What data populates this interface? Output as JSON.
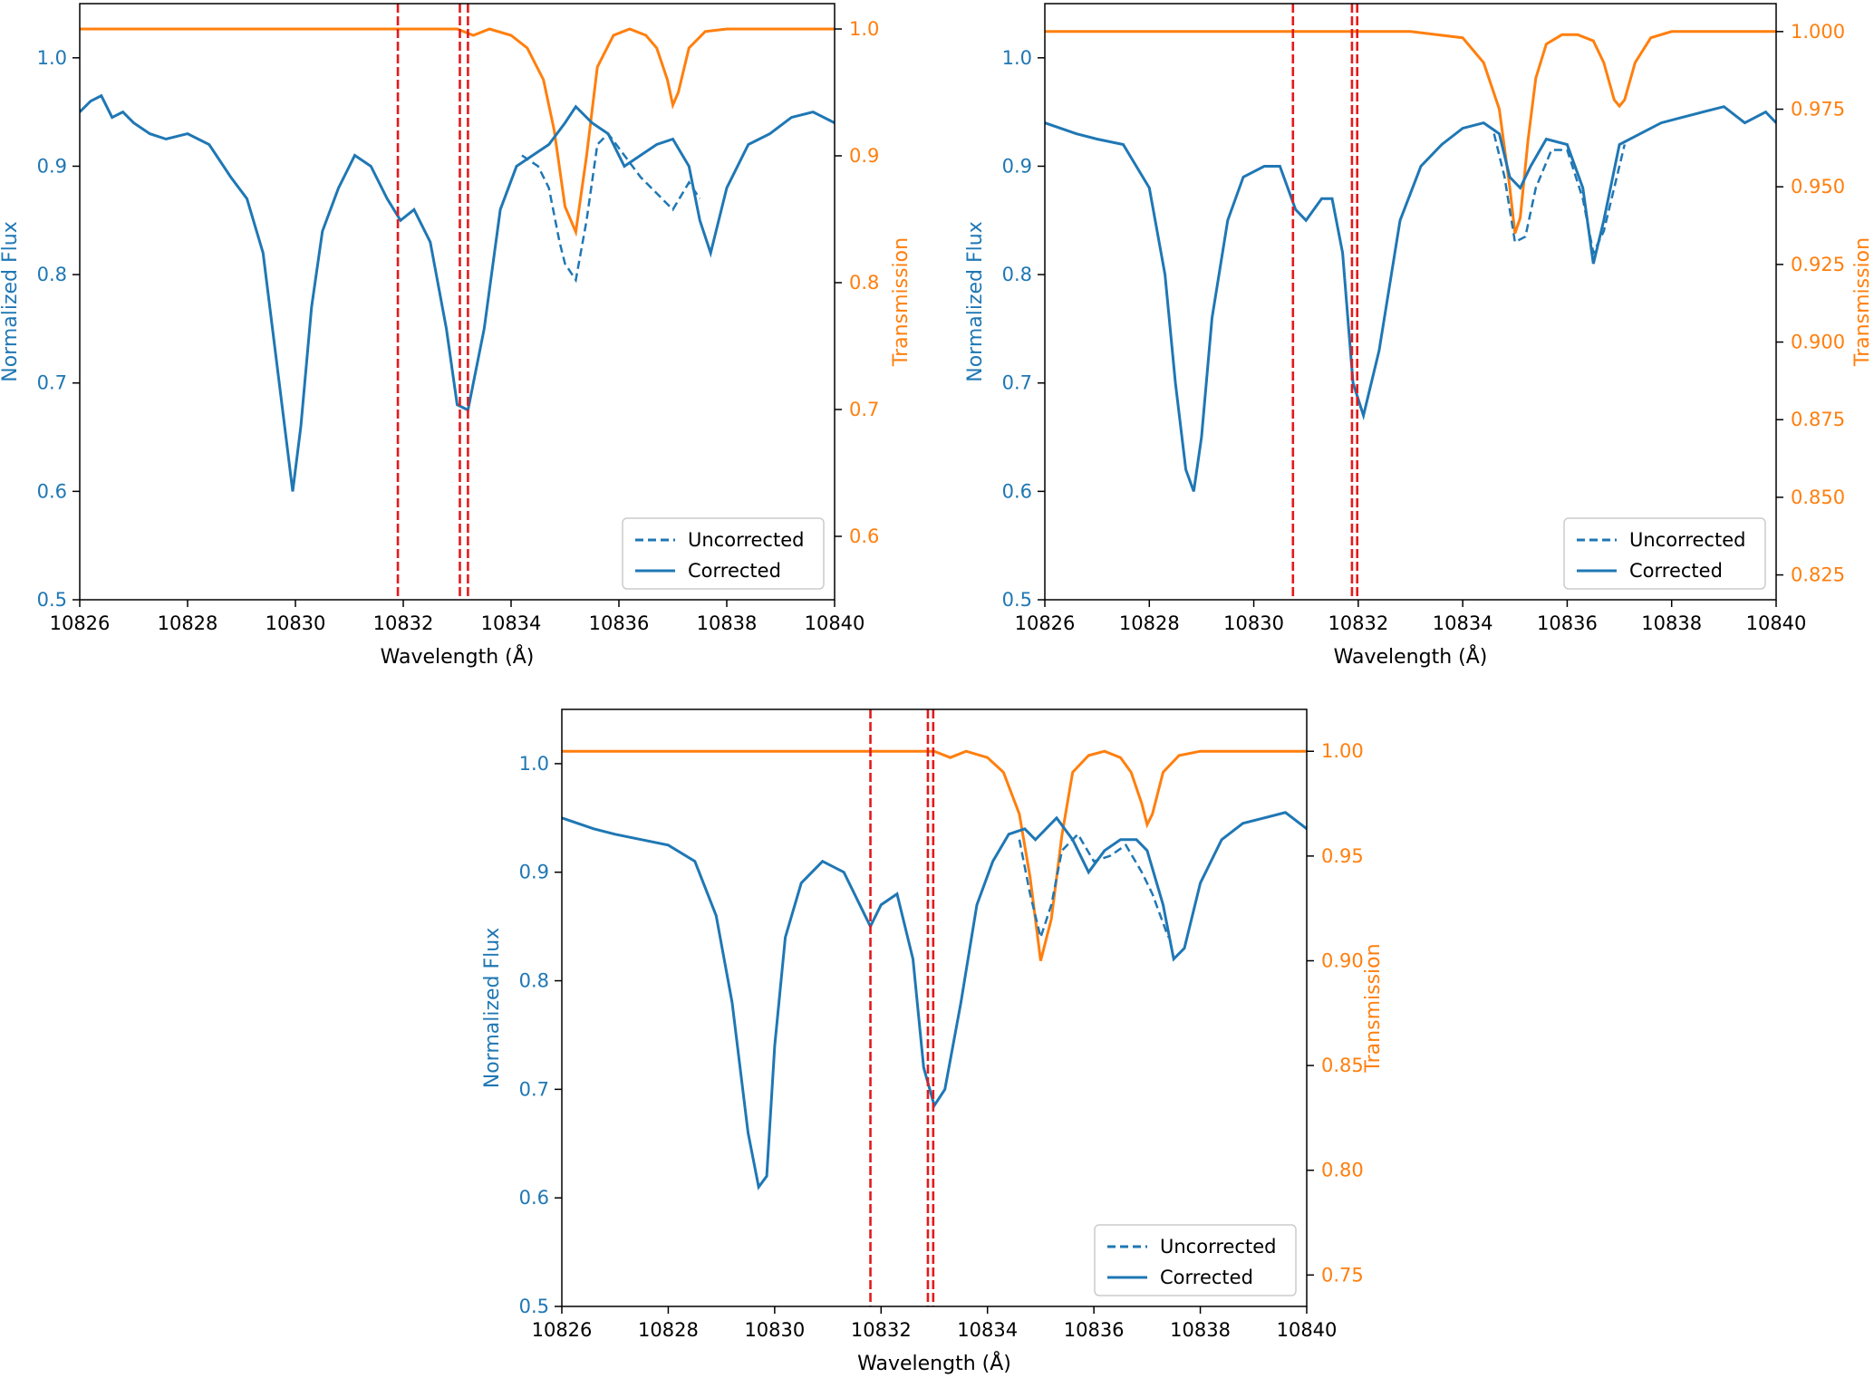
{
  "figure": {
    "panels": 3
  },
  "style": {
    "flux_color": "#1f77b4",
    "transmission_color": "#ff7f0e",
    "marker_color": "#e31a1c",
    "axis_color": "#000000"
  },
  "chart_data": [
    {
      "type": "line",
      "panel": "top-left",
      "xlabel": "Wavelength (Å)",
      "ylabel_left": "Normalized Flux",
      "ylabel_right": "Transmission",
      "xlim": [
        10826,
        10840
      ],
      "ylim_left": [
        0.5,
        1.05
      ],
      "ylim_right": [
        0.55,
        1.02
      ],
      "xticks": [
        10826,
        10828,
        10830,
        10832,
        10834,
        10836,
        10838,
        10840
      ],
      "yticks_left": [
        0.5,
        0.6,
        0.7,
        0.8,
        0.9,
        1.0
      ],
      "yticks_left_labels": [
        "0.5",
        "0.6",
        "0.7",
        "0.8",
        "0.9",
        "1.0"
      ],
      "yticks_right": [
        0.6,
        0.7,
        0.8,
        0.9,
        1.0
      ],
      "yticks_right_labels": [
        "0.6",
        "0.7",
        "0.8",
        "0.9",
        "1.0"
      ],
      "legend": {
        "position": "lower-right",
        "entries": [
          "Uncorrected",
          "Corrected"
        ]
      },
      "vlines": [
        10831.9,
        10833.05,
        10833.2
      ],
      "corrected": {
        "x": [
          10826,
          10826.2,
          10826.4,
          10826.6,
          10826.8,
          10827,
          10827.3,
          10827.6,
          10828,
          10828.4,
          10828.8,
          10829.1,
          10829.4,
          10829.6,
          10829.8,
          10829.95,
          10830.1,
          10830.3,
          10830.5,
          10830.8,
          10831.1,
          10831.4,
          10831.7,
          10831.95,
          10832.2,
          10832.5,
          10832.8,
          10833.0,
          10833.2,
          10833.5,
          10833.8,
          10834.1,
          10834.4,
          10834.7,
          10835.0,
          10835.2,
          10835.5,
          10835.8,
          10836.1,
          10836.4,
          10836.7,
          10837.0,
          10837.3,
          10837.5,
          10837.7,
          10838.0,
          10838.4,
          10838.8,
          10839.2,
          10839.6,
          10840
        ],
        "y": [
          0.95,
          0.96,
          0.965,
          0.945,
          0.95,
          0.94,
          0.93,
          0.925,
          0.93,
          0.92,
          0.89,
          0.87,
          0.82,
          0.74,
          0.66,
          0.6,
          0.66,
          0.77,
          0.84,
          0.88,
          0.91,
          0.9,
          0.87,
          0.85,
          0.86,
          0.83,
          0.75,
          0.68,
          0.675,
          0.75,
          0.86,
          0.9,
          0.91,
          0.92,
          0.94,
          0.955,
          0.94,
          0.93,
          0.9,
          0.91,
          0.92,
          0.925,
          0.9,
          0.85,
          0.82,
          0.88,
          0.92,
          0.93,
          0.945,
          0.95,
          0.94
        ]
      },
      "uncorrected": {
        "x": [
          10834.2,
          10834.5,
          10834.7,
          10834.9,
          10835.0,
          10835.2,
          10835.4,
          10835.6,
          10835.8,
          10836.1,
          10836.4,
          10836.7,
          10837.0,
          10837.3,
          10837.5
        ],
        "y": [
          0.91,
          0.9,
          0.88,
          0.83,
          0.81,
          0.795,
          0.85,
          0.92,
          0.93,
          0.91,
          0.89,
          0.875,
          0.86,
          0.885,
          0.87
        ]
      },
      "transmission": {
        "x": [
          10826,
          10827,
          10828,
          10829,
          10830,
          10831,
          10832,
          10833,
          10833.3,
          10833.6,
          10834,
          10834.3,
          10834.6,
          10834.8,
          10835.0,
          10835.2,
          10835.4,
          10835.6,
          10835.9,
          10836.2,
          10836.5,
          10836.7,
          10836.9,
          10837.0,
          10837.1,
          10837.3,
          10837.6,
          10838,
          10839,
          10840
        ],
        "y": [
          1.0,
          1.0,
          1.0,
          1.0,
          1.0,
          1.0,
          1.0,
          1.0,
          0.995,
          1.0,
          0.995,
          0.985,
          0.96,
          0.92,
          0.86,
          0.84,
          0.9,
          0.97,
          0.995,
          1.0,
          0.995,
          0.985,
          0.96,
          0.94,
          0.95,
          0.985,
          0.998,
          1.0,
          1.0,
          1.0
        ]
      }
    },
    {
      "type": "line",
      "panel": "top-right",
      "xlabel": "Wavelength (Å)",
      "ylabel_left": "Normalized Flux",
      "ylabel_right": "Transmission",
      "xlim": [
        10826,
        10840
      ],
      "ylim_left": [
        0.5,
        1.05
      ],
      "ylim_right": [
        0.817,
        1.009
      ],
      "xticks": [
        10826,
        10828,
        10830,
        10832,
        10834,
        10836,
        10838,
        10840
      ],
      "yticks_left": [
        0.5,
        0.6,
        0.7,
        0.8,
        0.9,
        1.0
      ],
      "yticks_left_labels": [
        "0.5",
        "0.6",
        "0.7",
        "0.8",
        "0.9",
        "1.0"
      ],
      "yticks_right": [
        0.825,
        0.85,
        0.875,
        0.9,
        0.925,
        0.95,
        0.975,
        1.0
      ],
      "yticks_right_labels": [
        "0.825",
        "0.850",
        "0.875",
        "0.900",
        "0.925",
        "0.950",
        "0.975",
        "1.000"
      ],
      "legend": {
        "position": "lower-right",
        "entries": [
          "Uncorrected",
          "Corrected"
        ]
      },
      "vlines": [
        10830.75,
        10831.88,
        10831.98
      ],
      "corrected": {
        "x": [
          10826,
          10826.3,
          10826.6,
          10827,
          10827.5,
          10828,
          10828.3,
          10828.5,
          10828.7,
          10828.85,
          10829.0,
          10829.2,
          10829.5,
          10829.8,
          10830.2,
          10830.5,
          10830.8,
          10831.0,
          10831.3,
          10831.5,
          10831.7,
          10831.9,
          10832.1,
          10832.4,
          10832.8,
          10833.2,
          10833.6,
          10834,
          10834.4,
          10834.7,
          10834.9,
          10835.1,
          10835.3,
          10835.6,
          10836.0,
          10836.3,
          10836.5,
          10836.7,
          10837.0,
          10837.4,
          10837.8,
          10838.2,
          10838.6,
          10839,
          10839.4,
          10839.8,
          10840
        ],
        "y": [
          0.94,
          0.935,
          0.93,
          0.925,
          0.92,
          0.88,
          0.8,
          0.7,
          0.62,
          0.6,
          0.65,
          0.76,
          0.85,
          0.89,
          0.9,
          0.9,
          0.86,
          0.85,
          0.87,
          0.87,
          0.82,
          0.7,
          0.67,
          0.73,
          0.85,
          0.9,
          0.92,
          0.935,
          0.94,
          0.93,
          0.89,
          0.88,
          0.9,
          0.925,
          0.92,
          0.88,
          0.81,
          0.85,
          0.92,
          0.93,
          0.94,
          0.945,
          0.95,
          0.955,
          0.94,
          0.95,
          0.94
        ]
      },
      "uncorrected": {
        "x": [
          10834.6,
          10834.8,
          10835.0,
          10835.2,
          10835.4,
          10835.7,
          10836.0,
          10836.3,
          10836.5,
          10836.7,
          10836.9,
          10837.1
        ],
        "y": [
          0.93,
          0.89,
          0.83,
          0.835,
          0.88,
          0.915,
          0.915,
          0.87,
          0.82,
          0.84,
          0.88,
          0.92
        ]
      },
      "transmission": {
        "x": [
          10826,
          10827,
          10828,
          10829,
          10830,
          10831,
          10832,
          10833,
          10833.5,
          10834,
          10834.4,
          10834.7,
          10834.9,
          10835.0,
          10835.1,
          10835.25,
          10835.4,
          10835.6,
          10835.9,
          10836.2,
          10836.5,
          10836.7,
          10836.9,
          10837.0,
          10837.1,
          10837.3,
          10837.6,
          10838,
          10839,
          10840
        ],
        "y": [
          1.0,
          1.0,
          1.0,
          1.0,
          1.0,
          1.0,
          1.0,
          1.0,
          0.999,
          0.998,
          0.99,
          0.975,
          0.95,
          0.935,
          0.94,
          0.965,
          0.985,
          0.996,
          0.999,
          0.999,
          0.997,
          0.99,
          0.978,
          0.976,
          0.978,
          0.99,
          0.998,
          1.0,
          1.0,
          1.0
        ]
      }
    },
    {
      "type": "line",
      "panel": "bottom",
      "xlabel": "Wavelength (Å)",
      "ylabel_left": "Normalized Flux",
      "ylabel_right": "Transmission",
      "xlim": [
        10826,
        10840
      ],
      "ylim_left": [
        0.5,
        1.05
      ],
      "ylim_right": [
        0.735,
        1.02
      ],
      "xticks": [
        10826,
        10828,
        10830,
        10832,
        10834,
        10836,
        10838,
        10840
      ],
      "yticks_left": [
        0.5,
        0.6,
        0.7,
        0.8,
        0.9,
        1.0
      ],
      "yticks_left_labels": [
        "0.5",
        "0.6",
        "0.7",
        "0.8",
        "0.9",
        "1.0"
      ],
      "yticks_right": [
        0.75,
        0.8,
        0.85,
        0.9,
        0.95,
        1.0
      ],
      "yticks_right_labels": [
        "0.75",
        "0.80",
        "0.85",
        "0.90",
        "0.95",
        "1.00"
      ],
      "legend": {
        "position": "lower-right",
        "entries": [
          "Uncorrected",
          "Corrected"
        ]
      },
      "vlines": [
        10831.8,
        10832.88,
        10832.98
      ],
      "corrected": {
        "x": [
          10826,
          10826.3,
          10826.6,
          10827,
          10827.5,
          10828,
          10828.5,
          10828.9,
          10829.2,
          10829.5,
          10829.7,
          10829.85,
          10830.0,
          10830.2,
          10830.5,
          10830.9,
          10831.3,
          10831.6,
          10831.8,
          10832.0,
          10832.3,
          10832.6,
          10832.8,
          10833.0,
          10833.2,
          10833.5,
          10833.8,
          10834.1,
          10834.4,
          10834.7,
          10834.9,
          10835.1,
          10835.3,
          10835.6,
          10835.9,
          10836.2,
          10836.5,
          10836.8,
          10837.0,
          10837.3,
          10837.5,
          10837.7,
          10838,
          10838.4,
          10838.8,
          10839.2,
          10839.6,
          10840
        ],
        "y": [
          0.95,
          0.945,
          0.94,
          0.935,
          0.93,
          0.925,
          0.91,
          0.86,
          0.78,
          0.66,
          0.61,
          0.62,
          0.74,
          0.84,
          0.89,
          0.91,
          0.9,
          0.87,
          0.85,
          0.87,
          0.88,
          0.82,
          0.72,
          0.685,
          0.7,
          0.78,
          0.87,
          0.91,
          0.935,
          0.94,
          0.93,
          0.94,
          0.95,
          0.93,
          0.9,
          0.92,
          0.93,
          0.93,
          0.92,
          0.87,
          0.82,
          0.83,
          0.89,
          0.93,
          0.945,
          0.95,
          0.955,
          0.94
        ]
      },
      "uncorrected": {
        "x": [
          10834.6,
          10834.8,
          10835.0,
          10835.2,
          10835.4,
          10835.7,
          10836.0,
          10836.3,
          10836.6,
          10836.9,
          10837.1,
          10837.4
        ],
        "y": [
          0.93,
          0.88,
          0.84,
          0.87,
          0.92,
          0.935,
          0.91,
          0.915,
          0.925,
          0.9,
          0.88,
          0.84
        ]
      },
      "transmission": {
        "x": [
          10826,
          10827,
          10828,
          10829,
          10830,
          10831,
          10832,
          10833,
          10833.3,
          10833.6,
          10834,
          10834.3,
          10834.6,
          10834.8,
          10835.0,
          10835.2,
          10835.4,
          10835.6,
          10835.9,
          10836.2,
          10836.5,
          10836.7,
          10836.9,
          10837.0,
          10837.1,
          10837.3,
          10837.6,
          10838,
          10839,
          10840
        ],
        "y": [
          1.0,
          1.0,
          1.0,
          1.0,
          1.0,
          1.0,
          1.0,
          1.0,
          0.997,
          1.0,
          0.997,
          0.99,
          0.97,
          0.94,
          0.9,
          0.92,
          0.96,
          0.99,
          0.998,
          1.0,
          0.997,
          0.99,
          0.975,
          0.965,
          0.97,
          0.99,
          0.998,
          1.0,
          1.0,
          1.0
        ]
      }
    }
  ]
}
